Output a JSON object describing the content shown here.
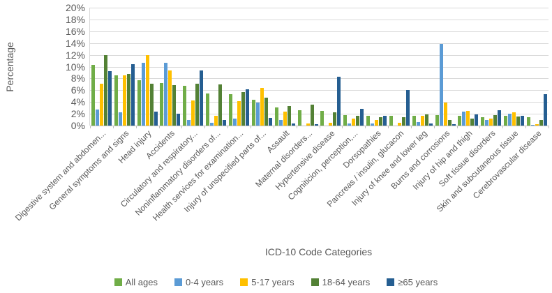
{
  "chart_data": {
    "type": "bar",
    "title": "",
    "xlabel": "ICD-10 Code Categories",
    "ylabel": "Percentage",
    "ylim": [
      0,
      20
    ],
    "ytick_step": 2,
    "ytick_suffix": "%",
    "grid": true,
    "legend_position": "bottom",
    "categories": [
      "Digestive system and abdomen...",
      "General symptoms and signs",
      "Head injury",
      "Accidents",
      "Circulatory and respiratory...",
      "Noninflammatory disorders of...",
      "Health services for examination...",
      "Injury of unspecified parts of...",
      "Assault",
      "Maternal disorders...",
      "Hypertensive disease",
      "Cogniticion, perception,...",
      "Dorsopathies",
      "Pancreas / insulin, glucacon",
      "Injury of knee and lower leg",
      "Burns and corrosions",
      "Injury of hip and thigh",
      "Soft tissue disorders",
      "Skin and subcutaneous tissue",
      "Cerebrovascular disease"
    ],
    "series": [
      {
        "name": "All ages",
        "color": "#70AD47",
        "values": [
          10.3,
          8.5,
          7.7,
          7.2,
          6.7,
          5.4,
          5.3,
          4.4,
          3.1,
          2.6,
          2.5,
          1.8,
          1.6,
          1.7,
          1.6,
          1.8,
          1.7,
          1.4,
          1.7,
          1.4
        ]
      },
      {
        "name": "0-4 years",
        "color": "#5B9BD5",
        "values": [
          2.7,
          2.2,
          10.6,
          10.7,
          0.9,
          0.5,
          1.2,
          3.9,
          1.0,
          0.0,
          0.0,
          0.3,
          0.3,
          0.0,
          0.6,
          13.9,
          2.4,
          0.9,
          2.0,
          0.1
        ]
      },
      {
        "name": "5-17 years",
        "color": "#FFC000",
        "values": [
          7.1,
          8.5,
          11.9,
          9.4,
          4.3,
          1.6,
          4.2,
          6.4,
          2.4,
          0.3,
          0.5,
          1.2,
          0.9,
          0.5,
          1.7,
          3.9,
          2.5,
          1.2,
          2.3,
          0.2
        ]
      },
      {
        "name": "18-64 years",
        "color": "#538135",
        "values": [
          11.9,
          8.8,
          7.1,
          6.9,
          7.1,
          7.0,
          5.7,
          4.7,
          3.3,
          3.5,
          2.2,
          1.7,
          1.4,
          1.4,
          1.9,
          0.9,
          1.2,
          1.8,
          1.5,
          0.9
        ]
      },
      {
        "name": "≥65 years",
        "color": "#255E91",
        "values": [
          9.2,
          10.4,
          2.4,
          2.0,
          9.4,
          1.0,
          6.2,
          1.3,
          0.3,
          0.2,
          8.3,
          2.8,
          1.7,
          6.0,
          0.3,
          0.2,
          1.9,
          2.6,
          1.7,
          5.3
        ]
      }
    ]
  }
}
